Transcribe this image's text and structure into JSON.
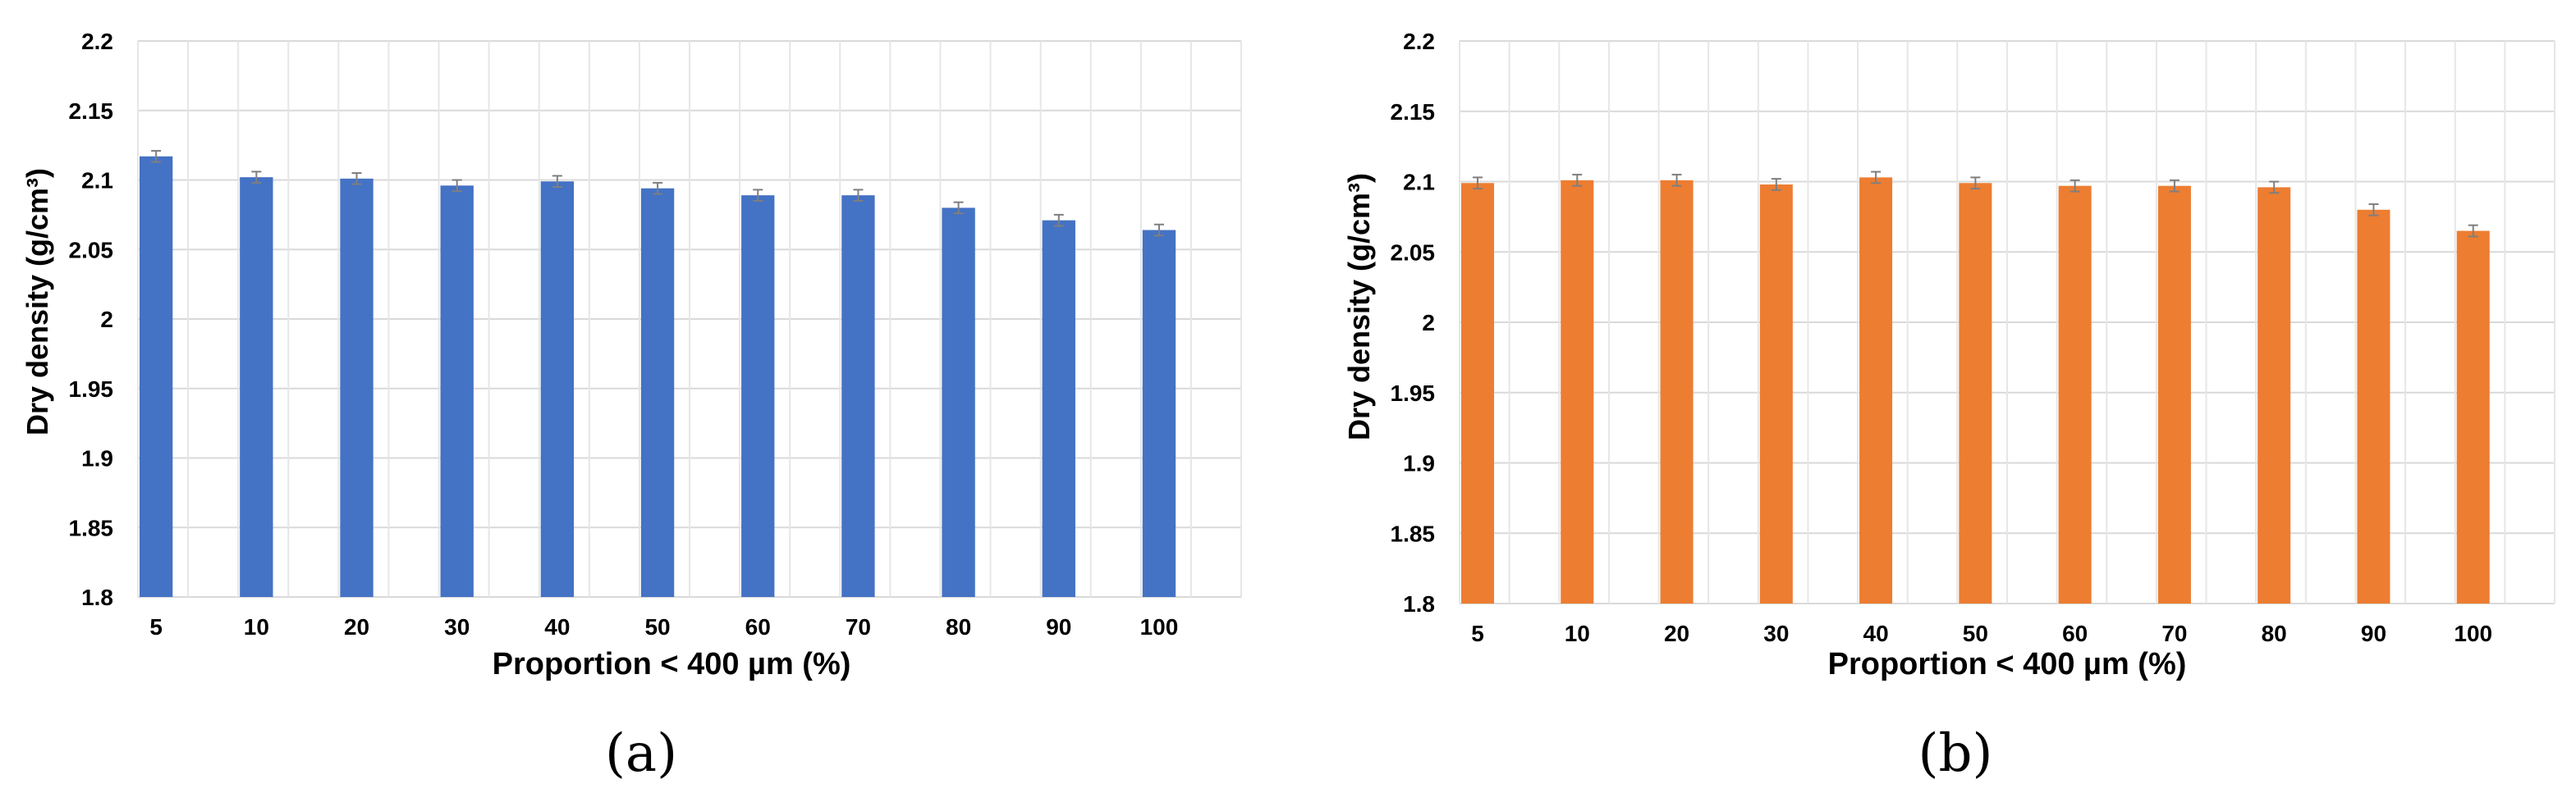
{
  "panels": [
    {
      "label": "(a)",
      "ylabel": "Dry density (g/cm³)",
      "xlabel": "Proportion < 400 µm (%)",
      "bar_color": "#4472C4"
    },
    {
      "label": "(b)",
      "ylabel": "Dry density (g/cm³)",
      "xlabel": "Proportion < 400 µm (%)",
      "bar_color": "#ED7D31"
    }
  ],
  "chart_data": [
    {
      "type": "bar",
      "categories": [
        "5",
        "10",
        "20",
        "30",
        "40",
        "50",
        "60",
        "70",
        "80",
        "90",
        "100"
      ],
      "values": [
        2.117,
        2.102,
        2.101,
        2.096,
        2.099,
        2.094,
        2.089,
        2.089,
        2.08,
        2.071,
        2.064
      ],
      "error": [
        0.004,
        0.004,
        0.004,
        0.004,
        0.004,
        0.004,
        0.004,
        0.004,
        0.004,
        0.004,
        0.004
      ],
      "xlabel": "Proportion < 400 µm (%)",
      "ylabel": "Dry density (g/cm³)",
      "ylim": [
        1.8,
        2.2
      ],
      "yticks": [
        "1.8",
        "1.85",
        "1.9",
        "1.95",
        "2",
        "2.05",
        "2.1",
        "2.15",
        "2.2"
      ],
      "grid": true,
      "color": "#4472C4"
    },
    {
      "type": "bar",
      "categories": [
        "5",
        "10",
        "20",
        "30",
        "40",
        "50",
        "60",
        "70",
        "80",
        "90",
        "100"
      ],
      "values": [
        2.099,
        2.101,
        2.101,
        2.098,
        2.103,
        2.099,
        2.097,
        2.097,
        2.096,
        2.08,
        2.065
      ],
      "error": [
        0.004,
        0.004,
        0.004,
        0.004,
        0.004,
        0.004,
        0.004,
        0.004,
        0.004,
        0.004,
        0.004
      ],
      "xlabel": "Proportion < 400 µm (%)",
      "ylabel": "Dry density (g/cm³)",
      "ylim": [
        1.8,
        2.2
      ],
      "yticks": [
        "1.8",
        "1.85",
        "1.9",
        "1.95",
        "2",
        "2.05",
        "2.1",
        "2.15",
        "2.2"
      ],
      "grid": true,
      "color": "#ED7D31"
    }
  ]
}
